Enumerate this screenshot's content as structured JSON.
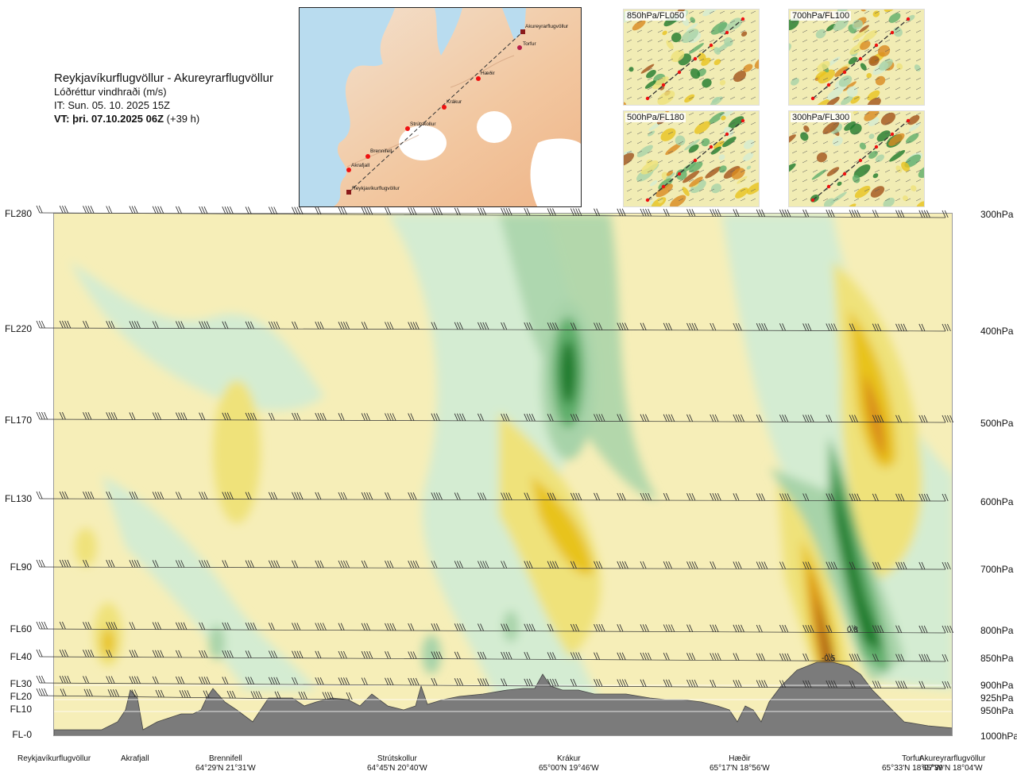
{
  "header": {
    "route": "Reykjavíkurflugvöllur - Akureyrarflugvöllur",
    "parameter": "Lóðréttur vindhraði (m/s)",
    "init_time": "IT: Sun. 05. 10. 2025 15Z",
    "valid_time": "VT: þri. 07.10.2025 06Z",
    "lead_time": "(+39 h)"
  },
  "map": {
    "stations": [
      {
        "name": "Akureyrarflugvöllur"
      },
      {
        "name": "Torfur"
      },
      {
        "name": "Hæðir"
      },
      {
        "name": "Krákur"
      },
      {
        "name": "Strútskollur"
      },
      {
        "name": "Brennifell"
      },
      {
        "name": "Akrafjall"
      },
      {
        "name": "Reykjavíkurflugvöllur"
      }
    ]
  },
  "thumbnails": [
    {
      "label": "850hPa/FL050"
    },
    {
      "label": "700hPa/FL100"
    },
    {
      "label": "500hPa/FL180"
    },
    {
      "label": "300hPa/FL300"
    }
  ],
  "chart_data": {
    "type": "heatmap",
    "title": "Reykjavíkurflugvöllur - Akureyrarflugvöllur",
    "subtitle": "Lóðréttur vindhraði (m/s)",
    "left_axis_labels": [
      "FL280",
      "FL220",
      "FL170",
      "FL130",
      "FL90",
      "FL60",
      "FL40",
      "FL30",
      "FL20",
      "FL10",
      "FL-0"
    ],
    "right_axis_labels": [
      "300hPa",
      "400hPa",
      "500hPa",
      "600hPa",
      "700hPa",
      "800hPa",
      "850hPa",
      "900hPa",
      "925hPa",
      "950hPa",
      "1000hPa"
    ],
    "pressure_levels_hPa": [
      300,
      400,
      500,
      600,
      700,
      800,
      850,
      900,
      925,
      950,
      1000
    ],
    "x_locations": [
      {
        "name": "Reykjavíkurflugvöllur",
        "coord": ""
      },
      {
        "name": "Akrafjall",
        "coord": ""
      },
      {
        "name": "Brennifell",
        "coord": "64°29'N 21°31'W"
      },
      {
        "name": "Strútskollur",
        "coord": "64°45'N 20°40'W"
      },
      {
        "name": "Krákur",
        "coord": "65°00'N 19°46'W"
      },
      {
        "name": "Hæðir",
        "coord": "65°17'N 18°56'W"
      },
      {
        "name": "Torfur",
        "coord": "65°33'N 18°07'W"
      },
      {
        "name": "Akureyrarflugvöllur",
        "coord": "65°39'N 18°04'W"
      }
    ],
    "contour_labels": [
      "0.8",
      "-0.5"
    ],
    "colors": {
      "strong_updraft": "#1f7a2c",
      "updraft": "#5fae6a",
      "weak_updraft": "#a7d3a9",
      "near_zero_up": "#d4ecd2",
      "near_zero_down": "#f6eeb8",
      "weak_downdraft": "#efe27a",
      "downdraft": "#e8c31e",
      "strong_downdraft": "#d98a1f",
      "extreme_downdraft": "#a3541a",
      "terrain": "#7b7b7b"
    },
    "features": [
      {
        "description": "updraft core",
        "location": "Krákur",
        "level_hPa": 450,
        "value": 0.6
      },
      {
        "description": "strong updraft",
        "location": "near Torfur",
        "level_hPa": 750,
        "value": 0.8
      },
      {
        "description": "strong downdraft",
        "location": "near Torfur",
        "level_hPa": 850,
        "value": -0.5
      },
      {
        "description": "downdraft band",
        "location": "between Hæðir and Akureyrarflugvöllur",
        "level_hPa": 500,
        "value": -0.4
      }
    ]
  }
}
